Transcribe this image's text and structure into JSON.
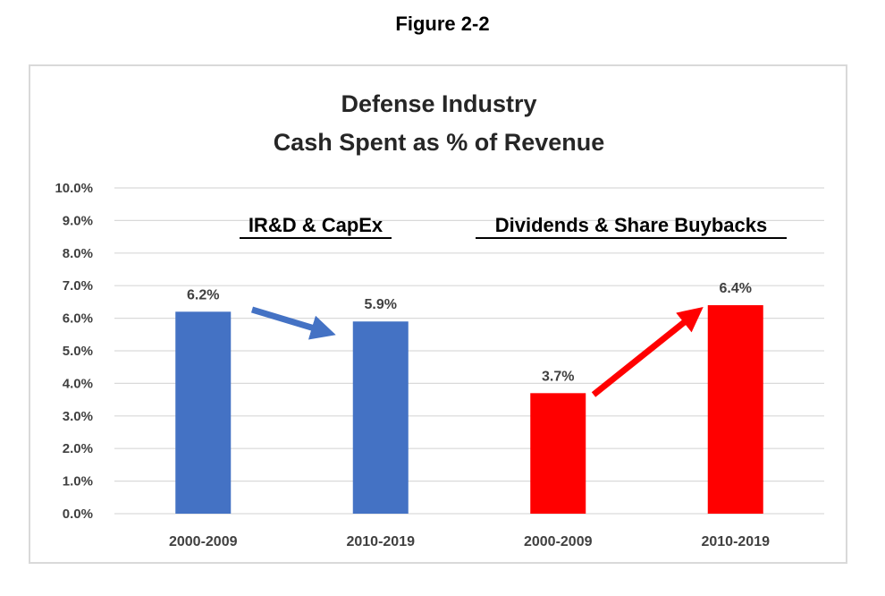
{
  "figure_label": "Figure 2-2",
  "colors": {
    "ird": "#4472c4",
    "div": "#ff0000",
    "grid": "#d9d9d9",
    "text": "#404040"
  },
  "chart_data": {
    "type": "bar",
    "title": "Defense Industry",
    "subtitle": "Cash Spent as % of Revenue",
    "xlabel": "",
    "ylabel": "",
    "ylim": [
      0,
      10
    ],
    "ytick_step": 1,
    "ytick_labels": [
      "0.0%",
      "1.0%",
      "2.0%",
      "3.0%",
      "4.0%",
      "5.0%",
      "6.0%",
      "7.0%",
      "8.0%",
      "9.0%",
      "10.0%"
    ],
    "grid": true,
    "categories": [
      "2000-2009",
      "2010-2019",
      "2000-2009",
      "2010-2019"
    ],
    "values": [
      6.2,
      5.9,
      3.7,
      6.4
    ],
    "value_labels": [
      "6.2%",
      "5.9%",
      "3.7%",
      "6.4%"
    ],
    "bar_colors": [
      "#4472c4",
      "#4472c4",
      "#ff0000",
      "#ff0000"
    ],
    "groups": [
      {
        "name": "IR&D & CapEx",
        "bar_indices": [
          0,
          1
        ],
        "arrow_color": "#4472c4"
      },
      {
        "name": "Dividends & Share Buybacks",
        "bar_indices": [
          2,
          3
        ],
        "arrow_color": "#ff0000"
      }
    ]
  }
}
